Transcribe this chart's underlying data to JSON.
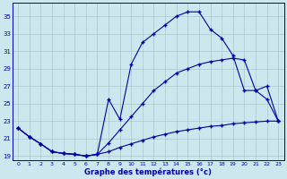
{
  "title": "Graphe des températures (°c)",
  "background_color": "#cce8ee",
  "grid_color": "#aac8cc",
  "line_color": "#0000aa",
  "xlim": [
    -0.5,
    23.5
  ],
  "ylim": [
    18.5,
    36.5
  ],
  "yticks": [
    19,
    21,
    23,
    25,
    27,
    29,
    31,
    33,
    35
  ],
  "xticks": [
    0,
    1,
    2,
    3,
    4,
    5,
    6,
    7,
    8,
    9,
    10,
    11,
    12,
    13,
    14,
    15,
    16,
    17,
    18,
    19,
    20,
    21,
    22,
    23
  ],
  "line1_x": [
    0,
    1,
    2,
    3,
    4,
    5,
    6,
    7,
    8,
    9,
    10,
    11,
    12,
    13,
    14,
    15,
    16,
    17,
    18,
    19,
    20,
    21,
    22,
    23
  ],
  "line1_y": [
    22.2,
    21.2,
    20.4,
    19.5,
    19.3,
    19.2,
    19.0,
    19.2,
    19.5,
    20.0,
    20.4,
    20.8,
    21.2,
    21.5,
    21.8,
    22.0,
    22.2,
    22.4,
    22.5,
    22.7,
    22.8,
    22.9,
    23.0,
    23.0
  ],
  "line2_x": [
    0,
    1,
    2,
    3,
    4,
    5,
    6,
    7,
    8,
    9,
    10,
    11,
    12,
    13,
    14,
    15,
    16,
    17,
    18,
    19,
    20,
    21,
    22,
    23
  ],
  "line2_y": [
    22.2,
    21.2,
    20.4,
    19.5,
    19.3,
    19.2,
    19.0,
    19.2,
    20.5,
    22.0,
    23.5,
    25.0,
    26.5,
    27.5,
    28.5,
    29.0,
    29.5,
    29.8,
    30.0,
    30.2,
    30.0,
    26.5,
    25.5,
    23.0
  ],
  "line3_x": [
    0,
    1,
    2,
    3,
    4,
    5,
    6,
    7,
    8,
    9,
    10,
    11,
    12,
    13,
    14,
    15,
    16,
    17,
    18,
    19,
    20,
    21,
    22,
    23
  ],
  "line3_y": [
    22.2,
    21.2,
    20.4,
    19.5,
    19.3,
    19.2,
    19.0,
    19.2,
    25.5,
    23.2,
    29.5,
    32.0,
    33.0,
    34.0,
    35.0,
    35.5,
    35.5,
    33.5,
    32.5,
    30.5,
    26.5,
    26.5,
    27.0,
    23.0
  ]
}
